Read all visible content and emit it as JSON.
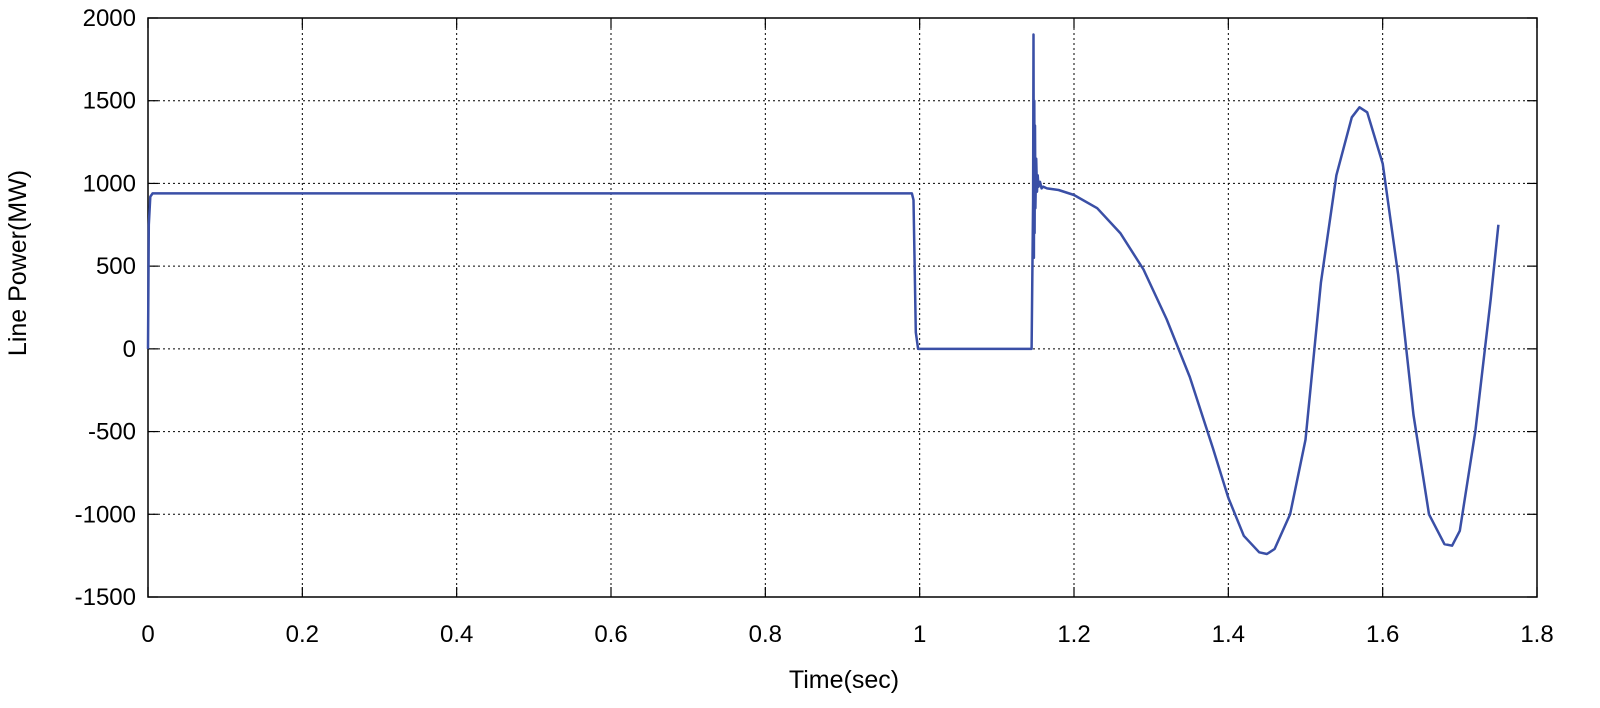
{
  "chart_data": {
    "type": "line",
    "title": "",
    "xlabel": "Time(sec)",
    "ylabel": "Line Power(MW)",
    "xlim": [
      0,
      1.8
    ],
    "ylim": [
      -1500,
      2000
    ],
    "xticks": [
      0,
      0.2,
      0.4,
      0.6,
      0.8,
      1,
      1.2,
      1.4,
      1.6,
      1.8
    ],
    "xtick_labels": [
      "0",
      "0.2",
      "0.4",
      "0.6",
      "0.8",
      "1",
      "1.2",
      "1.4",
      "1.6",
      "1.8"
    ],
    "yticks": [
      2000,
      1500,
      1000,
      500,
      0,
      -500,
      -1000,
      -1500
    ],
    "ytick_labels": [
      "2000",
      "1500",
      "1000",
      "500",
      "0",
      "-500",
      "-1000",
      "-1500"
    ],
    "grid": true,
    "line_color": "#3a4fa6",
    "series": [
      {
        "x": [
          0,
          0.001,
          0.003,
          0.006,
          0.99,
          0.992,
          0.995,
          0.998,
          1.0,
          1.145,
          1.147,
          1.1475,
          1.148,
          1.1485,
          1.149,
          1.1495,
          1.15,
          1.151,
          1.152,
          1.153,
          1.154,
          1.156,
          1.158,
          1.16,
          1.165,
          1.18,
          1.2,
          1.23,
          1.26,
          1.29,
          1.32,
          1.35,
          1.38,
          1.4,
          1.42,
          1.44,
          1.45,
          1.46,
          1.48,
          1.5,
          1.52,
          1.54,
          1.56,
          1.57,
          1.58,
          1.6,
          1.62,
          1.64,
          1.66,
          1.68,
          1.69,
          1.7,
          1.72,
          1.74,
          1.75
        ],
        "y": [
          0,
          750,
          920,
          940,
          940,
          900,
          100,
          0,
          0,
          0,
          900,
          1900,
          550,
          1500,
          700,
          1350,
          850,
          1150,
          950,
          1050,
          980,
          1010,
          970,
          980,
          970,
          960,
          930,
          850,
          700,
          480,
          180,
          -170,
          -600,
          -900,
          -1130,
          -1230,
          -1240,
          -1210,
          -1000,
          -550,
          400,
          1050,
          1400,
          1460,
          1430,
          1120,
          450,
          -400,
          -1000,
          -1180,
          -1190,
          -1100,
          -500,
          300,
          750
        ]
      }
    ]
  }
}
